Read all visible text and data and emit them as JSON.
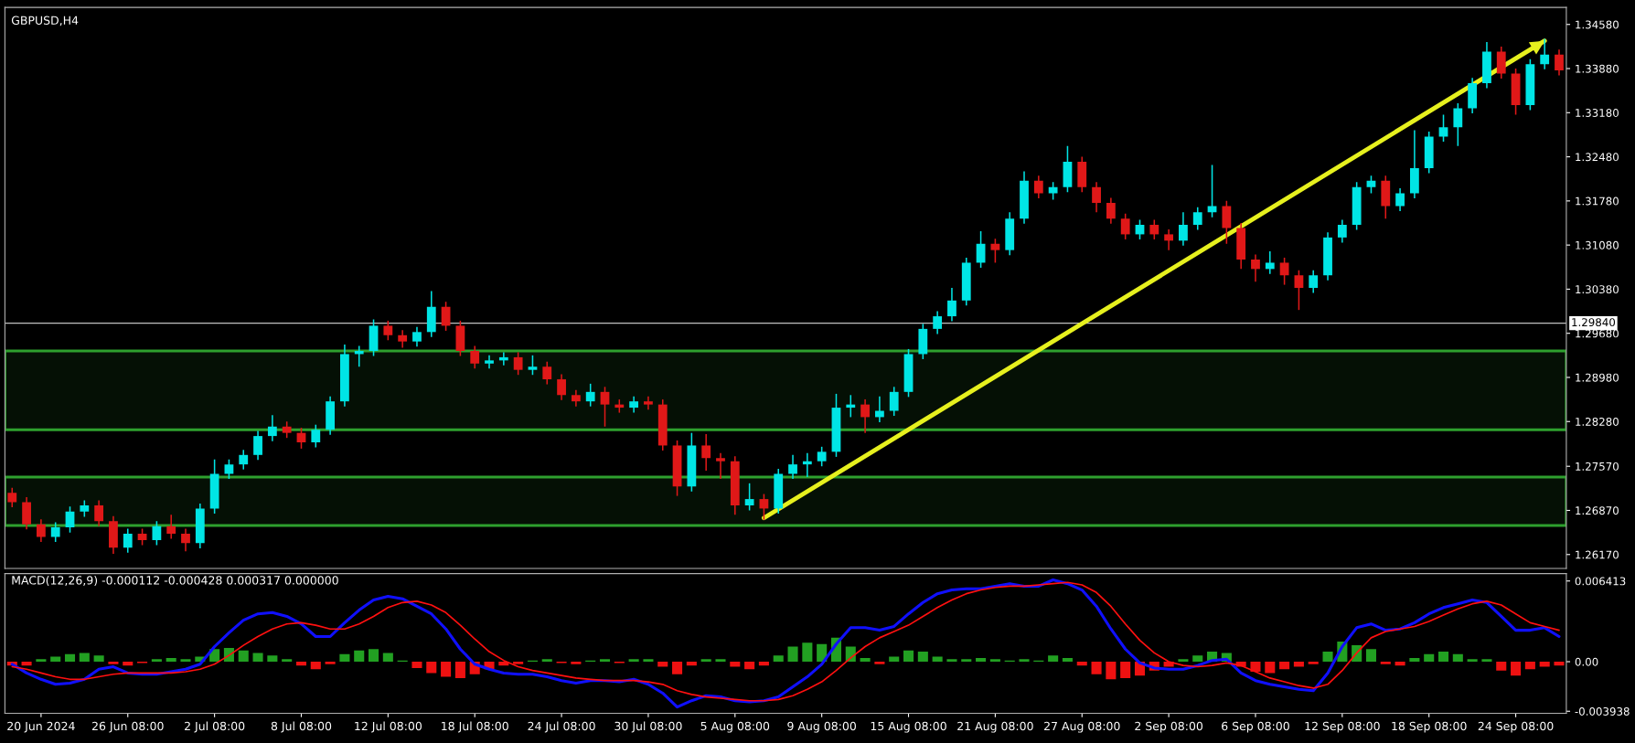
{
  "chart_data": [
    {
      "type": "candlestick",
      "title": "GBPUSD,H4",
      "categories": [
        null,
        null,
        null,
        null,
        null,
        null,
        null,
        null,
        null,
        null,
        null,
        null,
        null,
        null,
        null,
        null,
        null,
        null,
        null,
        null,
        null,
        null,
        null,
        null,
        null,
        null,
        null,
        null,
        null,
        null,
        null,
        null,
        null,
        null,
        null,
        null,
        null,
        null,
        null,
        null,
        null,
        null,
        null,
        null,
        null,
        null,
        null,
        null,
        null,
        null,
        null,
        null,
        null,
        null,
        null,
        null,
        null,
        null,
        null,
        null,
        null,
        null,
        null,
        null,
        null,
        null,
        null,
        null,
        null,
        null,
        null,
        null,
        null,
        null,
        null,
        null,
        null,
        null,
        null,
        null,
        null,
        null,
        null,
        null,
        null,
        null,
        null,
        null,
        null,
        null,
        null,
        null,
        null,
        null,
        null,
        null,
        null,
        null,
        null,
        null,
        null,
        null,
        null,
        null,
        null,
        null,
        null,
        null
      ],
      "colors": [
        "#e01818",
        "#e01818",
        "#e01818",
        "#00e5e5",
        "#00e5e5",
        "#00e5e5",
        "#e01818",
        "#e01818",
        "#00e5e5",
        "#e01818",
        "#00e5e5",
        "#e01818",
        "#e01818",
        "#00e5e5",
        "#00e5e5",
        "#00e5e5",
        "#00e5e5",
        "#00e5e5",
        "#00e5e5",
        "#e01818",
        "#e01818",
        "#00e5e5",
        "#00e5e5",
        "#00e5e5",
        "#00e5e5",
        "#00e5e5",
        "#e01818",
        "#e01818",
        "#00e5e5",
        "#00e5e5",
        "#e01818",
        "#e01818",
        "#e01818",
        "#00e5e5",
        "#00e5e5",
        "#e01818",
        "#00e5e5",
        "#e01818",
        "#e01818",
        "#e01818",
        "#00e5e5",
        "#e01818",
        "#e01818",
        "#00e5e5",
        "#e01818",
        "#e01818",
        "#e01818",
        "#00e5e5",
        "#e01818",
        "#e01818",
        "#e01818",
        "#00e5e5",
        "#e01818",
        "#00e5e5",
        "#00e5e5",
        "#00e5e5",
        "#00e5e5",
        "#00e5e5",
        "#00e5e5",
        "#e01818",
        "#00e5e5",
        "#00e5e5",
        "#00e5e5",
        "#00e5e5",
        "#00e5e5",
        "#00e5e5",
        "#00e5e5",
        "#00e5e5",
        "#e01818",
        "#00e5e5",
        "#00e5e5",
        "#e01818",
        "#00e5e5",
        "#00e5e5",
        "#e01818",
        "#e01818",
        "#e01818",
        "#e01818",
        "#00e5e5",
        "#e01818",
        "#e01818",
        "#00e5e5",
        "#00e5e5",
        "#00e5e5",
        "#e01818",
        "#e01818",
        "#e01818",
        "#00e5e5",
        "#e01818",
        "#e01818",
        "#00e5e5",
        "#00e5e5",
        "#00e5e5",
        "#00e5e5",
        "#00e5e5",
        "#e01818",
        "#00e5e5",
        "#00e5e5",
        "#00e5e5",
        "#00e5e5",
        "#00e5e5",
        "#00e5e5",
        "#00e5e5",
        "#e01818",
        "#e01818",
        "#00e5e5",
        "#00e5e5",
        "#e01818"
      ],
      "ohlc": [
        [
          1.2715,
          1.2723,
          1.2692,
          1.27
        ],
        [
          1.27,
          1.2708,
          1.2657,
          1.2665
        ],
        [
          1.2665,
          1.2673,
          1.2637,
          1.2645
        ],
        [
          1.2645,
          1.2668,
          1.2637,
          1.266
        ],
        [
          1.266,
          1.2693,
          1.2652,
          1.2685
        ],
        [
          1.2685,
          1.2703,
          1.2677,
          1.2695
        ],
        [
          1.2695,
          1.2703,
          1.2662,
          1.267
        ],
        [
          1.267,
          1.2678,
          1.2618,
          1.2628
        ],
        [
          1.2628,
          1.2658,
          1.262,
          1.265
        ],
        [
          1.265,
          1.2658,
          1.2632,
          1.264
        ],
        [
          1.264,
          1.267,
          1.2632,
          1.2662
        ],
        [
          1.2662,
          1.268,
          1.2642,
          1.265
        ],
        [
          1.265,
          1.2658,
          1.2622,
          1.2635
        ],
        [
          1.2635,
          1.2698,
          1.2627,
          1.269
        ],
        [
          1.269,
          1.2768,
          1.2682,
          1.2745
        ],
        [
          1.2745,
          1.2768,
          1.2737,
          1.276
        ],
        [
          1.276,
          1.2783,
          1.2752,
          1.2775
        ],
        [
          1.2775,
          1.2813,
          1.2767,
          1.2805
        ],
        [
          1.2805,
          1.2838,
          1.2797,
          1.282
        ],
        [
          1.282,
          1.2828,
          1.2802,
          1.281
        ],
        [
          1.281,
          1.2818,
          1.2785,
          1.2795
        ],
        [
          1.2795,
          1.2823,
          1.2787,
          1.2815
        ],
        [
          1.2815,
          1.2868,
          1.2807,
          1.286
        ],
        [
          1.286,
          1.295,
          1.2852,
          1.2935
        ],
        [
          1.2935,
          1.2948,
          1.2915,
          1.294
        ],
        [
          1.294,
          1.299,
          1.2932,
          1.298
        ],
        [
          1.298,
          1.2988,
          1.2957,
          1.2965
        ],
        [
          1.2965,
          1.2973,
          1.2945,
          1.2955
        ],
        [
          1.2955,
          1.2978,
          1.2947,
          1.297
        ],
        [
          1.297,
          1.3035,
          1.2962,
          1.301
        ],
        [
          1.301,
          1.3018,
          1.2972,
          1.298
        ],
        [
          1.298,
          1.2988,
          1.2932,
          1.294
        ],
        [
          1.294,
          1.2948,
          1.2912,
          1.292
        ],
        [
          1.292,
          1.2933,
          1.2912,
          1.2925
        ],
        [
          1.2925,
          1.2938,
          1.2917,
          1.293
        ],
        [
          1.293,
          1.2938,
          1.2902,
          1.291
        ],
        [
          1.291,
          1.2933,
          1.2902,
          1.2915
        ],
        [
          1.2915,
          1.2923,
          1.2887,
          1.2895
        ],
        [
          1.2895,
          1.2903,
          1.2862,
          1.287
        ],
        [
          1.287,
          1.2878,
          1.2852,
          1.286
        ],
        [
          1.286,
          1.2888,
          1.2852,
          1.2875
        ],
        [
          1.2875,
          1.2883,
          1.282,
          1.2855
        ],
        [
          1.2855,
          1.2863,
          1.2842,
          1.285
        ],
        [
          1.285,
          1.2868,
          1.2842,
          1.286
        ],
        [
          1.286,
          1.2868,
          1.2847,
          1.2855
        ],
        [
          1.2855,
          1.2863,
          1.2782,
          1.279
        ],
        [
          1.279,
          1.2798,
          1.271,
          1.2725
        ],
        [
          1.2725,
          1.281,
          1.2717,
          1.279
        ],
        [
          1.279,
          1.2808,
          1.275,
          1.277
        ],
        [
          1.277,
          1.2778,
          1.2737,
          1.2765
        ],
        [
          1.2765,
          1.2773,
          1.268,
          1.2695
        ],
        [
          1.2695,
          1.273,
          1.2687,
          1.2705
        ],
        [
          1.2705,
          1.2713,
          1.2672,
          1.269
        ],
        [
          1.269,
          1.2753,
          1.2682,
          1.2745
        ],
        [
          1.2745,
          1.2775,
          1.2737,
          1.276
        ],
        [
          1.276,
          1.2778,
          1.274,
          1.2765
        ],
        [
          1.2765,
          1.2788,
          1.2757,
          1.278
        ],
        [
          1.278,
          1.2872,
          1.2772,
          1.285
        ],
        [
          1.285,
          1.287,
          1.2835,
          1.2855
        ],
        [
          1.2855,
          1.2863,
          1.281,
          1.2835
        ],
        [
          1.2835,
          1.2868,
          1.2827,
          1.2845
        ],
        [
          1.2845,
          1.2883,
          1.2837,
          1.2875
        ],
        [
          1.2875,
          1.2943,
          1.2867,
          1.2935
        ],
        [
          1.2935,
          1.2983,
          1.2927,
          1.2975
        ],
        [
          1.2975,
          1.3003,
          1.2967,
          1.2995
        ],
        [
          1.2995,
          1.304,
          1.2987,
          1.302
        ],
        [
          1.302,
          1.3088,
          1.3012,
          1.308
        ],
        [
          1.308,
          1.313,
          1.3072,
          1.311
        ],
        [
          1.311,
          1.3118,
          1.308,
          1.31
        ],
        [
          1.31,
          1.316,
          1.3092,
          1.315
        ],
        [
          1.315,
          1.3225,
          1.3142,
          1.321
        ],
        [
          1.321,
          1.3218,
          1.3182,
          1.319
        ],
        [
          1.319,
          1.3208,
          1.318,
          1.32
        ],
        [
          1.32,
          1.3265,
          1.3192,
          1.324
        ],
        [
          1.324,
          1.3248,
          1.3192,
          1.32
        ],
        [
          1.32,
          1.3208,
          1.316,
          1.3175
        ],
        [
          1.3175,
          1.3183,
          1.3142,
          1.315
        ],
        [
          1.315,
          1.3158,
          1.3117,
          1.3125
        ],
        [
          1.3125,
          1.3148,
          1.3117,
          1.314
        ],
        [
          1.314,
          1.3148,
          1.3117,
          1.3125
        ],
        [
          1.3125,
          1.3133,
          1.31,
          1.3115
        ],
        [
          1.3115,
          1.316,
          1.3107,
          1.314
        ],
        [
          1.314,
          1.3168,
          1.3132,
          1.316
        ],
        [
          1.316,
          1.3235,
          1.3152,
          1.317
        ],
        [
          1.317,
          1.3178,
          1.311,
          1.3135
        ],
        [
          1.3135,
          1.3143,
          1.307,
          1.3085
        ],
        [
          1.3085,
          1.3093,
          1.305,
          1.307
        ],
        [
          1.307,
          1.3098,
          1.3062,
          1.308
        ],
        [
          1.308,
          1.3088,
          1.3045,
          1.306
        ],
        [
          1.306,
          1.3068,
          1.3005,
          1.304
        ],
        [
          1.304,
          1.3068,
          1.3032,
          1.306
        ],
        [
          1.306,
          1.3128,
          1.3052,
          1.312
        ],
        [
          1.312,
          1.3148,
          1.3112,
          1.314
        ],
        [
          1.314,
          1.3208,
          1.3132,
          1.32
        ],
        [
          1.32,
          1.3218,
          1.319,
          1.321
        ],
        [
          1.321,
          1.3218,
          1.315,
          1.317
        ],
        [
          1.317,
          1.3198,
          1.3162,
          1.319
        ],
        [
          1.319,
          1.329,
          1.3182,
          1.323
        ],
        [
          1.323,
          1.3288,
          1.3222,
          1.328
        ],
        [
          1.328,
          1.3315,
          1.3272,
          1.3295
        ],
        [
          1.3295,
          1.3333,
          1.3265,
          1.3325
        ],
        [
          1.3325,
          1.3373,
          1.3317,
          1.3365
        ],
        [
          1.3365,
          1.343,
          1.3357,
          1.3415
        ],
        [
          1.3415,
          1.3423,
          1.3372,
          1.338
        ],
        [
          1.338,
          1.3388,
          1.3315,
          1.333
        ],
        [
          1.333,
          1.3403,
          1.3322,
          1.3395
        ],
        [
          1.3395,
          1.3435,
          1.3387,
          1.341
        ],
        [
          1.341,
          1.3418,
          1.3377,
          1.3385
        ]
      ],
      "series": [
        {
          "type": "line",
          "color": "#e6f01e",
          "values": [
            null,
            null,
            null,
            null,
            null,
            null,
            null,
            null,
            null,
            null,
            null,
            null,
            null,
            null,
            null,
            null,
            null,
            null,
            null,
            null,
            null,
            null,
            null,
            null,
            null,
            null,
            null,
            null,
            null,
            null,
            null,
            null,
            null,
            null,
            null,
            null,
            null,
            null,
            null,
            null,
            null,
            null,
            null,
            null,
            null,
            null,
            null,
            null,
            null,
            null,
            null,
            null,
            1.2675,
            null,
            null,
            null,
            null,
            null,
            null,
            null,
            null,
            null,
            null,
            null,
            null,
            null,
            null,
            null,
            null,
            null,
            null,
            null,
            null,
            null,
            null,
            null,
            null,
            null,
            null,
            null,
            null,
            null,
            null,
            null,
            null,
            null,
            null,
            null,
            null,
            null,
            null,
            null,
            null,
            null,
            null,
            null,
            null,
            null,
            null,
            null,
            null,
            null,
            null,
            null,
            null,
            null,
            1.3432,
            null
          ]
        }
      ],
      "ylim": [
        1.2595,
        1.3485
      ],
      "yticks": [
        {
          "value": 1.3458,
          "label": "1.34580"
        },
        {
          "value": 1.3388,
          "label": "1.33880"
        },
        {
          "value": 1.3318,
          "label": "1.33180"
        },
        {
          "value": 1.3248,
          "label": "1.32480"
        },
        {
          "value": 1.3178,
          "label": "1.31780"
        },
        {
          "value": 1.3108,
          "label": "1.31080"
        },
        {
          "value": 1.3038,
          "label": "1.30380"
        },
        {
          "value": 1.2968,
          "label": "1.29680"
        },
        {
          "value": 1.2898,
          "label": "1.28980"
        },
        {
          "value": 1.2828,
          "label": "1.28280"
        },
        {
          "value": 1.2757,
          "label": "1.27570"
        },
        {
          "value": 1.2687,
          "label": "1.26870"
        },
        {
          "value": 1.2617,
          "label": "1.26170"
        }
      ],
      "ref_lines": [
        {
          "axis": "y",
          "value": 1.2984,
          "label": "1.29840",
          "color": "#c0c0c0"
        }
      ],
      "bands": [
        {
          "axis": "y",
          "from": 1.2815,
          "to": 1.294,
          "color": "#2ea02e"
        },
        {
          "axis": "y",
          "from": 1.2663,
          "to": 1.274,
          "color": "#2ea02e"
        }
      ]
    },
    {
      "type": "bar",
      "title": "MACD(12,26,9) -0.000112 -0.000428 0.000317 0.000000",
      "categories": [
        null,
        null,
        "20 Jun 2024",
        null,
        null,
        null,
        null,
        null,
        "26 Jun 08:00",
        null,
        null,
        null,
        null,
        null,
        "2 Jul 08:00",
        null,
        null,
        null,
        null,
        null,
        "8 Jul 08:00",
        null,
        null,
        null,
        null,
        null,
        "12 Jul 08:00",
        null,
        null,
        null,
        null,
        null,
        "18 Jul 08:00",
        null,
        null,
        null,
        null,
        null,
        "24 Jul 08:00",
        null,
        null,
        null,
        null,
        null,
        "30 Jul 08:00",
        null,
        null,
        null,
        null,
        null,
        "5 Aug 08:00",
        null,
        null,
        null,
        null,
        null,
        "9 Aug 08:00",
        null,
        null,
        null,
        null,
        null,
        "15 Aug 08:00",
        null,
        null,
        null,
        null,
        null,
        "21 Aug 08:00",
        null,
        null,
        null,
        null,
        null,
        "27 Aug 08:00",
        null,
        null,
        null,
        null,
        null,
        "2 Sep 08:00",
        null,
        null,
        null,
        null,
        null,
        "6 Sep 08:00",
        null,
        null,
        null,
        null,
        null,
        "12 Sep 08:00",
        null,
        null,
        null,
        null,
        null,
        "18 Sep 08:00",
        null,
        null,
        null,
        null,
        null,
        "24 Sep 08:00",
        null,
        null,
        null
      ],
      "values": [
        -0.0003,
        -0.0003,
        0.0002,
        0.0004,
        0.0006,
        0.0007,
        0.0005,
        -0.0002,
        -0.0003,
        -0.0001,
        0.0002,
        0.0003,
        0.0002,
        0.0004,
        0.001,
        0.0011,
        0.0009,
        0.0007,
        0.0005,
        0.0002,
        -0.0003,
        -0.0006,
        -0.0002,
        0.0006,
        0.0009,
        0.001,
        0.0007,
        0.0001,
        -0.0005,
        -0.0009,
        -0.0012,
        -0.0013,
        -0.001,
        -0.0006,
        -0.0003,
        -0.0002,
        0.0001,
        0.0002,
        -0.0001,
        -0.0002,
        0.0001,
        0.0002,
        -0.0001,
        0.0002,
        0.0002,
        -0.0004,
        -0.001,
        -0.0003,
        0.0002,
        0.0002,
        -0.0004,
        -0.0006,
        -0.0003,
        0.0005,
        0.0012,
        0.0015,
        0.0014,
        0.0019,
        0.0012,
        0.0003,
        -0.0002,
        0.0004,
        0.0009,
        0.0008,
        0.0004,
        0.0002,
        0.0002,
        0.0003,
        0.0002,
        0.0001,
        0.0002,
        0.0001,
        0.0005,
        0.0003,
        -0.0003,
        -0.001,
        -0.0014,
        -0.0013,
        -0.0011,
        -0.0007,
        -0.0004,
        0.0002,
        0.0005,
        0.0008,
        0.0007,
        -0.0004,
        -0.0008,
        -0.0009,
        -0.0006,
        -0.0004,
        -0.0002,
        0.0008,
        0.0016,
        0.0013,
        0.001,
        -0.0002,
        -0.0003,
        0.0003,
        0.0006,
        0.0008,
        0.0006,
        0.0002,
        0.0002,
        -0.0007,
        -0.0011,
        -0.0006,
        -0.0004,
        -0.0003
      ],
      "colors": [
        "#ee1111",
        "#ee1111",
        "#22a022",
        "#22a022",
        "#22a022",
        "#22a022",
        "#22a022",
        "#ee1111",
        "#ee1111",
        "#ee1111",
        "#22a022",
        "#22a022",
        "#22a022",
        "#22a022",
        "#22a022",
        "#22a022",
        "#22a022",
        "#22a022",
        "#22a022",
        "#22a022",
        "#ee1111",
        "#ee1111",
        "#ee1111",
        "#22a022",
        "#22a022",
        "#22a022",
        "#22a022",
        "#22a022",
        "#ee1111",
        "#ee1111",
        "#ee1111",
        "#ee1111",
        "#ee1111",
        "#ee1111",
        "#ee1111",
        "#ee1111",
        "#22a022",
        "#22a022",
        "#ee1111",
        "#ee1111",
        "#22a022",
        "#22a022",
        "#ee1111",
        "#22a022",
        "#22a022",
        "#ee1111",
        "#ee1111",
        "#ee1111",
        "#22a022",
        "#22a022",
        "#ee1111",
        "#ee1111",
        "#ee1111",
        "#22a022",
        "#22a022",
        "#22a022",
        "#22a022",
        "#22a022",
        "#22a022",
        "#22a022",
        "#ee1111",
        "#22a022",
        "#22a022",
        "#22a022",
        "#22a022",
        "#22a022",
        "#22a022",
        "#22a022",
        "#22a022",
        "#22a022",
        "#22a022",
        "#22a022",
        "#22a022",
        "#22a022",
        "#ee1111",
        "#ee1111",
        "#ee1111",
        "#ee1111",
        "#ee1111",
        "#ee1111",
        "#ee1111",
        "#22a022",
        "#22a022",
        "#22a022",
        "#22a022",
        "#ee1111",
        "#ee1111",
        "#ee1111",
        "#ee1111",
        "#ee1111",
        "#ee1111",
        "#22a022",
        "#22a022",
        "#22a022",
        "#22a022",
        "#ee1111",
        "#ee1111",
        "#22a022",
        "#22a022",
        "#22a022",
        "#22a022",
        "#22a022",
        "#22a022",
        "#ee1111",
        "#ee1111",
        "#ee1111",
        "#ee1111",
        "#ee1111"
      ],
      "series": [
        {
          "type": "line",
          "color": "#1010ff",
          "values": [
            -0.0002,
            -0.0009,
            -0.0014,
            -0.0018,
            -0.0017,
            -0.0014,
            -0.0006,
            -0.0004,
            -0.0009,
            -0.001,
            -0.001,
            -0.0008,
            -0.0006,
            -0.0002,
            0.0012,
            0.0023,
            0.0033,
            0.0038,
            0.0039,
            0.0036,
            0.003,
            0.002,
            0.002,
            0.0031,
            0.0041,
            0.0049,
            0.0052,
            0.005,
            0.0044,
            0.0038,
            0.0026,
            0.001,
            -0.0002,
            -0.0006,
            -0.0009,
            -0.001,
            -0.001,
            -0.0012,
            -0.0015,
            -0.0017,
            -0.0015,
            -0.0015,
            -0.0016,
            -0.0014,
            -0.0018,
            -0.0025,
            -0.0036,
            -0.0031,
            -0.0027,
            -0.0028,
            -0.0031,
            -0.0032,
            -0.0031,
            -0.0028,
            -0.002,
            -0.0012,
            -0.0002,
            0.0014,
            0.0027,
            0.0027,
            0.0025,
            0.0028,
            0.0038,
            0.0047,
            0.0054,
            0.0057,
            0.0058,
            0.0058,
            0.006,
            0.0062,
            0.006,
            0.006,
            0.0065,
            0.0062,
            0.0057,
            0.0044,
            0.0026,
            0.001,
            -0.0001,
            -0.0005,
            -0.0006,
            -0.0006,
            -0.0003,
            0.0001,
            0.0002,
            -0.0009,
            -0.0015,
            -0.0018,
            -0.002,
            -0.0022,
            -0.0023,
            -0.0009,
            0.0012,
            0.0027,
            0.003,
            0.0025,
            0.0026,
            0.0031,
            0.0038,
            0.0043,
            0.0046,
            0.0049,
            0.0047,
            0.0036,
            0.0025,
            0.0025,
            0.0027,
            0.002
          ]
        },
        {
          "type": "line",
          "color": "#ff1010",
          "values": [
            -0.0004,
            -0.0006,
            -0.0009,
            -0.0012,
            -0.0014,
            -0.0014,
            -0.0012,
            -0.001,
            -0.0009,
            -0.0009,
            -0.0009,
            -0.0009,
            -0.0008,
            -0.0006,
            -0.0002,
            0.0005,
            0.0013,
            0.002,
            0.0026,
            0.003,
            0.0031,
            0.0029,
            0.0026,
            0.0026,
            0.003,
            0.0036,
            0.0043,
            0.0047,
            0.0048,
            0.0045,
            0.0039,
            0.0029,
            0.0018,
            0.0008,
            0.0001,
            -0.0004,
            -0.0007,
            -0.0009,
            -0.0011,
            -0.0013,
            -0.0014,
            -0.0015,
            -0.0015,
            -0.0015,
            -0.0016,
            -0.0018,
            -0.0023,
            -0.0026,
            -0.0028,
            -0.0029,
            -0.003,
            -0.0031,
            -0.0031,
            -0.003,
            -0.0027,
            -0.0022,
            -0.0016,
            -0.0007,
            0.0003,
            0.0012,
            0.0019,
            0.0024,
            0.0029,
            0.0036,
            0.0043,
            0.0049,
            0.0054,
            0.0057,
            0.0059,
            0.006,
            0.006,
            0.0061,
            0.0062,
            0.0063,
            0.0061,
            0.0055,
            0.0044,
            0.003,
            0.0017,
            0.0007,
            0.0,
            -0.0003,
            -0.0004,
            -0.0003,
            -0.0001,
            -0.0003,
            -0.0008,
            -0.0013,
            -0.0016,
            -0.0019,
            -0.0021,
            -0.0018,
            -0.0007,
            0.0007,
            0.0019,
            0.0024,
            0.0026,
            0.0028,
            0.0032,
            0.0037,
            0.0042,
            0.0046,
            0.0048,
            0.0045,
            0.0038,
            0.0031,
            0.0028,
            0.0025
          ]
        }
      ],
      "ylim": [
        -0.0041,
        0.007
      ],
      "yticks": [
        0.006413,
        {
          "value": 0,
          "label": "0.00"
        },
        -0.003938
      ]
    }
  ]
}
